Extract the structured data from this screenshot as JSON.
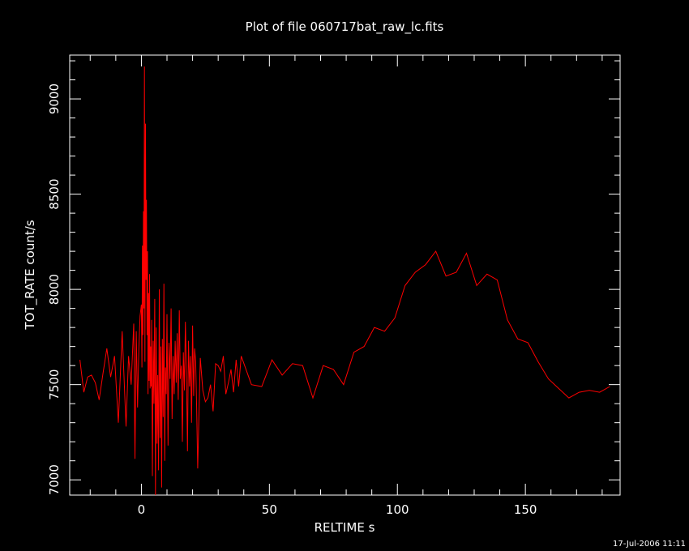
{
  "chart_data": {
    "type": "line",
    "title": "Plot of file 060717bat_raw_lc.fits",
    "xlabel": "RELTIME   s",
    "ylabel": "TOT_RATE   count/s",
    "xlim": [
      -28,
      187
    ],
    "ylim": [
      6920,
      9230
    ],
    "xticks": [
      0,
      50,
      100,
      150
    ],
    "yticks": [
      7000,
      7500,
      8000,
      8500,
      9000
    ],
    "grid": false,
    "footer": "17-Jul-2006 11:11",
    "colors": {
      "background": "#000000",
      "axes": "#ffffff",
      "series": "#ff0000"
    },
    "series": [
      {
        "x": [
          -24,
          -22.5,
          -21,
          -19.5,
          -18,
          -16.5,
          -15,
          -13.5,
          -12,
          -10.5,
          -9,
          -7.5,
          -6,
          -5,
          -4,
          -3,
          -2.5,
          -2,
          -1.5,
          -1,
          -0.5,
          0,
          0.2,
          0.4,
          0.6,
          0.8,
          1,
          1.2,
          1.4,
          1.6,
          1.8,
          2,
          2.2,
          2.4,
          2.6,
          2.8,
          3,
          3.2,
          3.4,
          3.6,
          3.8,
          4,
          4.3,
          4.6,
          4.9,
          5.2,
          5.5,
          5.8,
          6.1,
          6.4,
          6.7,
          7,
          7.3,
          7.6,
          7.9,
          8.2,
          8.5,
          8.8,
          9.1,
          9.4,
          9.7,
          10,
          10.4,
          10.8,
          11.2,
          11.6,
          12,
          12.4,
          12.8,
          13.2,
          13.6,
          14,
          14.4,
          14.8,
          15.2,
          15.6,
          16,
          16.4,
          16.8,
          17.2,
          17.6,
          18,
          18.4,
          18.8,
          19.2,
          19.6,
          20,
          20.4,
          20.8,
          21.2,
          21.6,
          22,
          23,
          24,
          25,
          26,
          27,
          28,
          29,
          30,
          31,
          32,
          33,
          34,
          35,
          36,
          37,
          38,
          39,
          43,
          47,
          51,
          55,
          59,
          63,
          67,
          71,
          75,
          79,
          83,
          87,
          91,
          95,
          99,
          103,
          107,
          111,
          115,
          119,
          123,
          127,
          131,
          135,
          139,
          143,
          147,
          151,
          155,
          159,
          163,
          167,
          171,
          175,
          179,
          183
        ],
        "y": [
          7630,
          7460,
          7540,
          7550,
          7510,
          7420,
          7560,
          7690,
          7540,
          7650,
          7300,
          7780,
          7280,
          7650,
          7500,
          7820,
          7110,
          7780,
          7380,
          7690,
          7860,
          7920,
          7590,
          8230,
          7760,
          8410,
          7900,
          9170,
          7620,
          8870,
          8050,
          8470,
          7760,
          8200,
          7450,
          7980,
          7520,
          8080,
          7480,
          7700,
          7490,
          7840,
          7020,
          7730,
          7400,
          7950,
          6920,
          7800,
          7190,
          7550,
          7050,
          8000,
          7220,
          7700,
          6960,
          7740,
          7330,
          8030,
          7100,
          7590,
          7450,
          7870,
          7180,
          7720,
          7530,
          7900,
          7320,
          7650,
          7450,
          7730,
          7510,
          7770,
          7420,
          7890,
          7530,
          7600,
          7200,
          7670,
          7470,
          7830,
          7570,
          7150,
          7730,
          7490,
          7650,
          7300,
          7810,
          7440,
          7690,
          7620,
          7380,
          7060,
          7640,
          7470,
          7410,
          7430,
          7500,
          7360,
          7610,
          7600,
          7570,
          7650,
          7450,
          7510,
          7580,
          7460,
          7630,
          7490,
          7650,
          7500,
          7490,
          7630,
          7550,
          7610,
          7600,
          7430,
          7600,
          7580,
          7500,
          7670,
          7700,
          7800,
          7780,
          7850,
          8020,
          8090,
          8130,
          8200,
          8070,
          8090,
          8190,
          8020,
          8080,
          8050,
          7840,
          7740,
          7720,
          7620,
          7530,
          7480,
          7430,
          7460,
          7470,
          7460,
          7490
        ]
      }
    ]
  }
}
